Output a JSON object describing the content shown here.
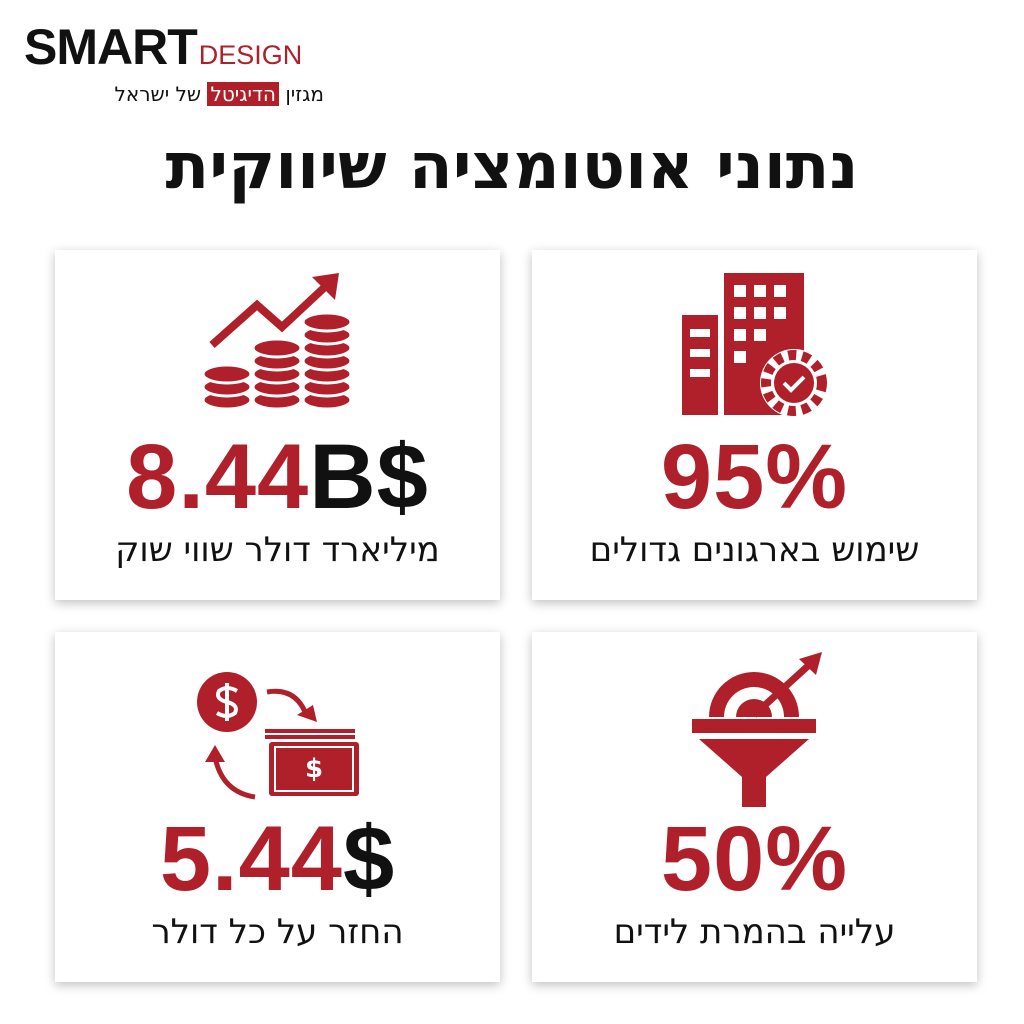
{
  "header": {
    "brand": {
      "bold": "SMART",
      "light": "DESIGN"
    },
    "tagline": {
      "start": "מגזין",
      "highlight": "הדיגיטל",
      "end": "של ישראל"
    },
    "title": "נתוני אוטומציה שיווקית"
  },
  "cards": [
    {
      "number": "95%",
      "unit": "",
      "label": "שימוש בארגונים גדולים"
    },
    {
      "number": "8.44",
      "unit": "B$",
      "label": "מיליארד דולר שווי שוק"
    },
    {
      "number": "50%",
      "unit": "",
      "label": "עלייה בהמרת לידים"
    },
    {
      "number": "5.44",
      "unit": "$",
      "label": "החזר על כל דולר"
    }
  ]
}
